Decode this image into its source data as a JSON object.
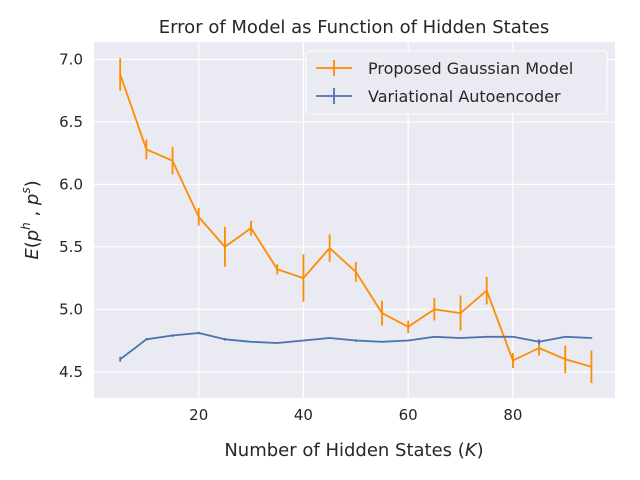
{
  "chart_data": {
    "type": "line",
    "title": "Error of Model as Function of Hidden States",
    "xlabel": "Number of Hidden States (K)",
    "ylabel": "E(p^h , p^s)",
    "xlim": [
      0,
      99.5
    ],
    "ylim": [
      4.29,
      7.14
    ],
    "xticks": [
      20,
      40,
      60,
      80
    ],
    "yticks": [
      4.5,
      5.0,
      5.5,
      6.0,
      6.5,
      7.0
    ],
    "grid": true,
    "legend_position": "top-right",
    "x": [
      5,
      10,
      15,
      20,
      25,
      30,
      35,
      40,
      45,
      50,
      55,
      60,
      65,
      70,
      75,
      80,
      85,
      90,
      95
    ],
    "series": [
      {
        "name": "Proposed Gaussian Model",
        "color": "#ff8c00",
        "values": [
          6.88,
          6.28,
          6.19,
          5.74,
          5.5,
          5.65,
          5.32,
          5.25,
          5.49,
          5.3,
          4.97,
          4.86,
          5.0,
          4.97,
          5.15,
          4.59,
          4.69,
          4.6,
          4.54
        ],
        "errors": [
          0.13,
          0.08,
          0.11,
          0.07,
          0.16,
          0.06,
          0.04,
          0.19,
          0.11,
          0.08,
          0.1,
          0.05,
          0.09,
          0.14,
          0.11,
          0.06,
          0.06,
          0.11,
          0.13
        ]
      },
      {
        "name": "Variational Autoencoder",
        "color": "#4c72b0",
        "values": [
          4.6,
          4.76,
          4.79,
          4.81,
          4.76,
          4.74,
          4.73,
          4.75,
          4.77,
          4.75,
          4.74,
          4.75,
          4.78,
          4.77,
          4.78,
          4.78,
          4.74,
          4.78,
          4.77
        ],
        "errors": [
          0.02,
          0.01,
          0.01,
          0.01,
          0.01,
          0.005,
          0.005,
          0.005,
          0.005,
          0.01,
          0.005,
          0.005,
          0.005,
          0.005,
          0.005,
          0.005,
          0.02,
          0.005,
          0.005
        ]
      }
    ]
  }
}
